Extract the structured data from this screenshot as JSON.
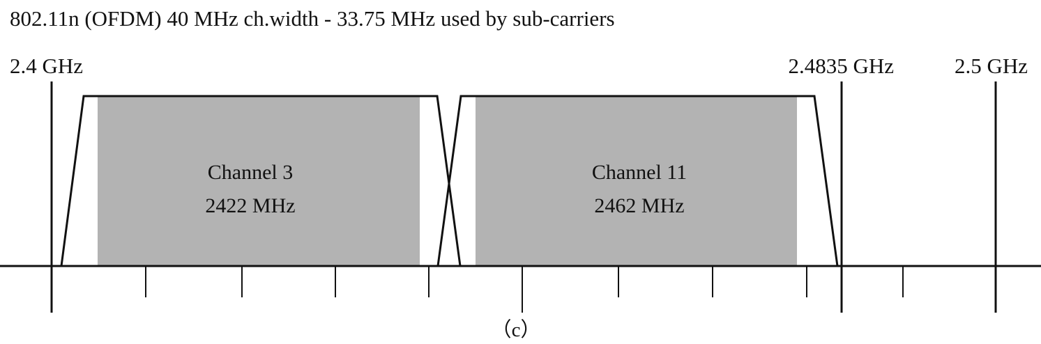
{
  "title": "802.11n (OFDM) 40 MHz ch.width - 33.75 MHz used by sub-carriers",
  "frequency_labels": {
    "start": "2.4 GHz",
    "band_end": "2.4835 GHz",
    "end": "2.5 GHz"
  },
  "channels": [
    {
      "name": "Channel 3",
      "center": "2422 MHz"
    },
    {
      "name": "Channel 11",
      "center": "2462 MHz"
    }
  ],
  "caption": "（c）",
  "colors": {
    "line": "#111111",
    "subcarrier_fill": "#b3b3b3",
    "background": "#ffffff"
  }
}
